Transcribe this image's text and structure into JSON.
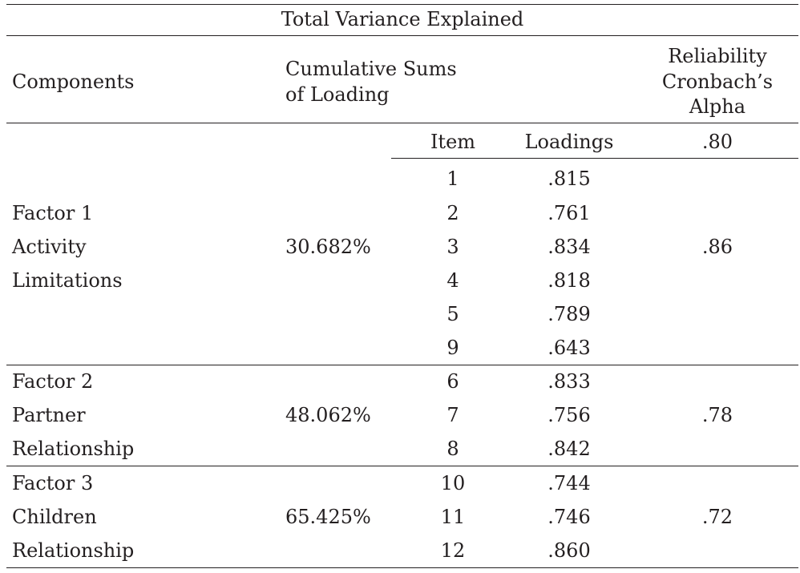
{
  "table": {
    "title": "Total Variance Explained",
    "headers": {
      "components": "Components",
      "cumulative_1": "Cumulative Sums",
      "cumulative_2": "of Loading",
      "reliability_1": "Reliability",
      "reliability_2": "Cronbach’s",
      "reliability_3": "Alpha",
      "item": "Item",
      "loadings": "Loadings",
      "alpha_total": ".80"
    },
    "factors": [
      {
        "name_lines": [
          "Factor 1",
          "Activity",
          "Limitations"
        ],
        "cumulative": "30.682%",
        "alpha": ".86",
        "items": [
          {
            "item": "1",
            "loading": ".815"
          },
          {
            "item": "2",
            "loading": ".761"
          },
          {
            "item": "3",
            "loading": ".834"
          },
          {
            "item": "4",
            "loading": ".818"
          },
          {
            "item": "5",
            "loading": ".789"
          },
          {
            "item": "9",
            "loading": ".643"
          }
        ]
      },
      {
        "name_lines": [
          "Factor 2",
          "Partner",
          "Relationship"
        ],
        "cumulative": "48.062%",
        "alpha": ".78",
        "items": [
          {
            "item": "6",
            "loading": ".833"
          },
          {
            "item": "7",
            "loading": ".756"
          },
          {
            "item": "8",
            "loading": ".842"
          }
        ]
      },
      {
        "name_lines": [
          "Factor 3",
          "Children",
          "Relationship"
        ],
        "cumulative": "65.425%",
        "alpha": ".72",
        "items": [
          {
            "item": "10",
            "loading": ".744"
          },
          {
            "item": "11",
            "loading": ".746"
          },
          {
            "item": "12",
            "loading": ".860"
          }
        ]
      }
    ]
  }
}
